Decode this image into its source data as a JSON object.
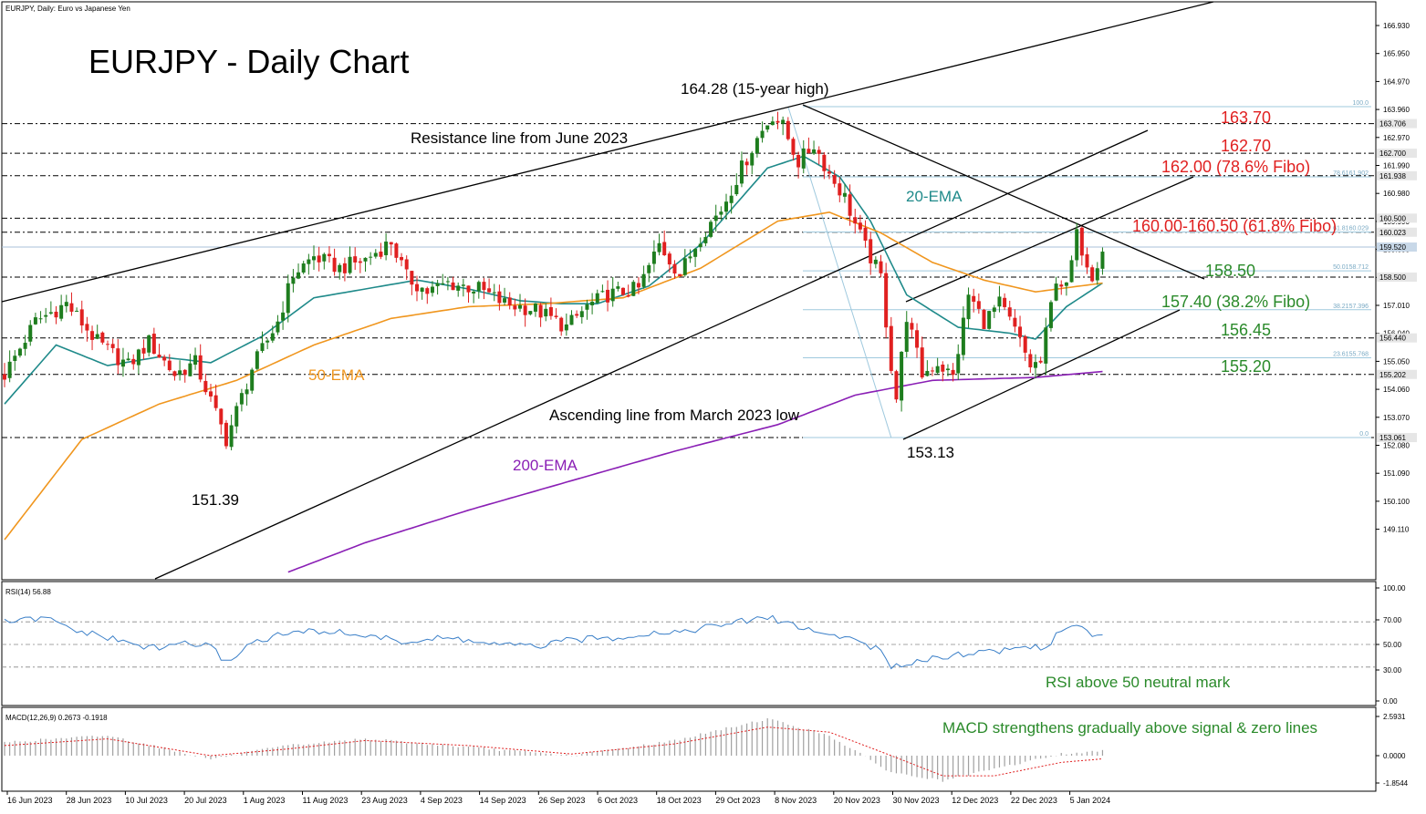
{
  "header": {
    "symbol_info": "EURJPY, Daily:  Euro vs Japanese Yen",
    "title": "EURJPY - Daily Chart"
  },
  "colors": {
    "bull": "#1e7d1e",
    "bear": "#e02020",
    "ema20": "#1f8a8a",
    "ema50": "#f0961e",
    "ema200": "#8a1fb5",
    "level_red": "#e02020",
    "level_green": "#2a8a2a",
    "fibo": "#9fc9de",
    "indicator": "#3a7fc8",
    "macd_signal": "#e02020",
    "macd_hist": "#a0a0a0"
  },
  "annotations": {
    "high": "164.28 (15-year high)",
    "resistance_line": "Resistance line from June 2023",
    "ascending_line": "Ascending line from March 2023 low",
    "ema20": "20-EMA",
    "ema50": "50-EMA",
    "ema200": "200-EMA",
    "low1": "151.39",
    "low2": "153.13",
    "lvl_163_70": "163.70",
    "lvl_162_70": "162.70",
    "lvl_162_00": "162.00 (78.6% Fibo)",
    "lvl_160": "160.00-160.50 (61.8% Fibo)",
    "lvl_158_50": "158.50",
    "lvl_157_40": "157.40 (38.2% Fibo)",
    "lvl_156_45": "156.45",
    "lvl_155_20": "155.20",
    "rsi_note": "RSI above 50 neutral mark",
    "macd_note": "MACD strengthens gradually above signal & zero lines"
  },
  "fibo_labels": {
    "f100": "100.0",
    "f786": "78.6161.902",
    "f618": "61.8160.029",
    "f500": "50.0158.712",
    "f382": "38.2157.396",
    "f236": "23.6155.768",
    "f0": "0.0"
  },
  "price_axis": {
    "ticks": [
      "166.930",
      "165.950",
      "164.970",
      "163.960",
      "162.970",
      "161.990",
      "160.980",
      "159.990",
      "159.000",
      "158.020",
      "157.010",
      "156.040",
      "155.050",
      "154.060",
      "153.070",
      "152.080",
      "151.090",
      "150.100",
      "149.110"
    ],
    "markers": [
      {
        "label": "163.706",
        "value": 163.706,
        "bg": "#e6e6e6",
        "fg": "#000000"
      },
      {
        "label": "162.700",
        "value": 162.7,
        "bg": "#e6e6e6",
        "fg": "#000000"
      },
      {
        "label": "161.938",
        "value": 161.938,
        "bg": "#e6e6e6",
        "fg": "#000000"
      },
      {
        "label": "160.500",
        "value": 160.5,
        "bg": "#e6e6e6",
        "fg": "#000000"
      },
      {
        "label": "160.023",
        "value": 160.023,
        "bg": "#e6e6e6",
        "fg": "#000000"
      },
      {
        "label": "159.520",
        "value": 159.52,
        "bg": "#c8d8e8",
        "fg": "#000000"
      },
      {
        "label": "158.500",
        "value": 158.5,
        "bg": "#e6e6e6",
        "fg": "#000000"
      },
      {
        "label": "156.440",
        "value": 156.44,
        "bg": "#e6e6e6",
        "fg": "#000000"
      },
      {
        "label": "155.202",
        "value": 155.202,
        "bg": "#e6e6e6",
        "fg": "#000000"
      },
      {
        "label": "153.061",
        "value": 153.061,
        "bg": "#e6e6e6",
        "fg": "#000000"
      }
    ]
  },
  "rsi": {
    "label": "RSI(14) 56.88",
    "ticks": [
      "100.00",
      "70.00",
      "50.00",
      "30.00",
      "0.00"
    ]
  },
  "macd": {
    "label": "MACD(12,26,9) 0.2673 -0.1918",
    "ticks": [
      "2.5931",
      "0.0000",
      "-1.8544"
    ]
  },
  "date_axis": [
    "16 Jun 2023",
    "28 Jun 2023",
    "10 Jul 2023",
    "20 Jul 2023",
    "1 Aug 2023",
    "11 Aug 2023",
    "23 Aug 2023",
    "4 Sep 2023",
    "14 Sep 2023",
    "26 Sep 2023",
    "6 Oct 2023",
    "18 Oct 2023",
    "29 Oct 2023",
    "8 Nov 2023",
    "20 Nov 2023",
    "30 Nov 2023",
    "12 Dec 2023",
    "22 Dec 2023",
    "5 Jan 2024"
  ],
  "chart_data": {
    "type": "candlestick",
    "title": "EURJPY - Daily Chart",
    "x_range": [
      "16 Jun 2023",
      "10 Jan 2024"
    ],
    "ylim": [
      148.5,
      167.3
    ],
    "key_levels": [
      164.28,
      163.7,
      162.7,
      162.0,
      160.5,
      160.0,
      158.5,
      157.4,
      156.45,
      155.2,
      153.13,
      151.39
    ],
    "fibonacci": {
      "from": 153.061,
      "to": 164.28,
      "levels": {
        "0.0": 153.061,
        "23.6": 155.768,
        "38.2": 157.396,
        "50.0": 158.712,
        "61.8": 160.029,
        "78.6": 161.902,
        "100.0": 164.28
      }
    },
    "close_path": [
      [
        0,
        155.2
      ],
      [
        6,
        157.0
      ],
      [
        12,
        157.6
      ],
      [
        18,
        156.3
      ],
      [
        24,
        155.5
      ],
      [
        28,
        156.3
      ],
      [
        33,
        155.2
      ],
      [
        37,
        155.6
      ],
      [
        43,
        153.0
      ],
      [
        48,
        155.4
      ],
      [
        53,
        157.0
      ],
      [
        56,
        158.6
      ],
      [
        60,
        159.2
      ],
      [
        65,
        158.8
      ],
      [
        70,
        159.1
      ],
      [
        75,
        159.7
      ],
      [
        78,
        158.5
      ],
      [
        82,
        158.0
      ],
      [
        86,
        158.3
      ],
      [
        92,
        158.1
      ],
      [
        97,
        157.6
      ],
      [
        103,
        157.4
      ],
      [
        109,
        156.8
      ],
      [
        113,
        157.5
      ],
      [
        117,
        157.9
      ],
      [
        123,
        158.1
      ],
      [
        127,
        159.6
      ],
      [
        131,
        158.6
      ],
      [
        135,
        159.9
      ],
      [
        139,
        160.8
      ],
      [
        143,
        162.2
      ],
      [
        146,
        163.2
      ],
      [
        149,
        164.0
      ],
      [
        151,
        163.6
      ],
      [
        154,
        162.4
      ],
      [
        157,
        163.0
      ],
      [
        160,
        162.0
      ],
      [
        163,
        161.2
      ],
      [
        165,
        160.3
      ],
      [
        167,
        159.5
      ],
      [
        170,
        158.5
      ],
      [
        172,
        155.5
      ],
      [
        173,
        154.4
      ],
      [
        175,
        157.2
      ],
      [
        178,
        155.2
      ],
      [
        181,
        155.6
      ],
      [
        184,
        155.1
      ],
      [
        187,
        157.9
      ],
      [
        190,
        157.0
      ],
      [
        193,
        157.6
      ],
      [
        196,
        156.7
      ],
      [
        199,
        155.5
      ],
      [
        201,
        155.6
      ],
      [
        204,
        158.5
      ],
      [
        206,
        158.1
      ],
      [
        208,
        159.9
      ],
      [
        211,
        158.6
      ],
      [
        213,
        159.5
      ]
    ],
    "series": [
      {
        "name": "20-EMA",
        "points": [
          [
            0,
            154.2
          ],
          [
            10,
            156.2
          ],
          [
            20,
            155.5
          ],
          [
            30,
            155.8
          ],
          [
            40,
            155.6
          ],
          [
            50,
            156.5
          ],
          [
            60,
            157.8
          ],
          [
            70,
            158.1
          ],
          [
            80,
            158.4
          ],
          [
            90,
            158.1
          ],
          [
            100,
            157.7
          ],
          [
            108,
            157.6
          ],
          [
            115,
            157.6
          ],
          [
            125,
            158.2
          ],
          [
            135,
            159.6
          ],
          [
            142,
            161.0
          ],
          [
            148,
            162.2
          ],
          [
            155,
            162.6
          ],
          [
            162,
            161.9
          ],
          [
            168,
            160.4
          ],
          [
            175,
            157.9
          ],
          [
            185,
            156.8
          ],
          [
            195,
            156.6
          ],
          [
            200,
            156.4
          ],
          [
            206,
            157.5
          ],
          [
            213,
            158.3
          ]
        ]
      },
      {
        "name": "50-EMA",
        "points": [
          [
            0,
            149.6
          ],
          [
            15,
            153.0
          ],
          [
            30,
            154.2
          ],
          [
            45,
            155.0
          ],
          [
            60,
            156.2
          ],
          [
            75,
            157.1
          ],
          [
            90,
            157.5
          ],
          [
            105,
            157.6
          ],
          [
            120,
            157.8
          ],
          [
            135,
            158.8
          ],
          [
            150,
            160.4
          ],
          [
            160,
            160.7
          ],
          [
            170,
            160.0
          ],
          [
            180,
            159.0
          ],
          [
            190,
            158.4
          ],
          [
            200,
            158.0
          ],
          [
            213,
            158.3
          ]
        ]
      },
      {
        "name": "200-EMA",
        "points": [
          [
            55,
            148.5
          ],
          [
            70,
            149.5
          ],
          [
            90,
            150.6
          ],
          [
            110,
            151.6
          ],
          [
            130,
            152.6
          ],
          [
            150,
            153.5
          ],
          [
            165,
            154.5
          ],
          [
            180,
            155.0
          ],
          [
            200,
            155.1
          ],
          [
            213,
            155.3
          ]
        ]
      }
    ],
    "rsi": {
      "name": "RSI(14)",
      "last": 56.88,
      "ylim": [
        0,
        100
      ],
      "points": [
        [
          0,
          70
        ],
        [
          8,
          73
        ],
        [
          14,
          62
        ],
        [
          20,
          56
        ],
        [
          25,
          50
        ],
        [
          30,
          46
        ],
        [
          34,
          52
        ],
        [
          40,
          48
        ],
        [
          43,
          34
        ],
        [
          48,
          52
        ],
        [
          55,
          60
        ],
        [
          62,
          62
        ],
        [
          70,
          58
        ],
        [
          78,
          52
        ],
        [
          86,
          56
        ],
        [
          95,
          50
        ],
        [
          103,
          48
        ],
        [
          110,
          54
        ],
        [
          118,
          56
        ],
        [
          125,
          60
        ],
        [
          132,
          62
        ],
        [
          140,
          68
        ],
        [
          148,
          74
        ],
        [
          152,
          69
        ],
        [
          158,
          60
        ],
        [
          165,
          55
        ],
        [
          170,
          44
        ],
        [
          172,
          28
        ],
        [
          175,
          34
        ],
        [
          180,
          38
        ],
        [
          186,
          42
        ],
        [
          192,
          44
        ],
        [
          198,
          48
        ],
        [
          202,
          48
        ],
        [
          205,
          62
        ],
        [
          208,
          68
        ],
        [
          211,
          58
        ],
        [
          213,
          57
        ]
      ]
    },
    "macd": {
      "name": "MACD(12,26,9)",
      "macd_value": 0.2673,
      "signal_value": -0.1918,
      "ylim": [
        -1.8544,
        2.5931
      ],
      "signal": [
        [
          0,
          0.6
        ],
        [
          20,
          1.0
        ],
        [
          40,
          0.0
        ],
        [
          55,
          0.4
        ],
        [
          70,
          0.9
        ],
        [
          90,
          0.6
        ],
        [
          110,
          0.1
        ],
        [
          130,
          0.7
        ],
        [
          148,
          1.7
        ],
        [
          160,
          1.4
        ],
        [
          172,
          0.0
        ],
        [
          182,
          -1.2
        ],
        [
          192,
          -1.2
        ],
        [
          205,
          -0.4
        ],
        [
          213,
          -0.19
        ]
      ],
      "histogram": [
        [
          0,
          0.8
        ],
        [
          20,
          1.2
        ],
        [
          40,
          -0.2
        ],
        [
          55,
          0.6
        ],
        [
          70,
          1.0
        ],
        [
          90,
          0.5
        ],
        [
          110,
          0.0
        ],
        [
          130,
          0.9
        ],
        [
          148,
          2.2
        ],
        [
          160,
          1.2
        ],
        [
          172,
          -1.0
        ],
        [
          182,
          -1.5
        ],
        [
          192,
          -0.8
        ],
        [
          205,
          0.1
        ],
        [
          213,
          0.27
        ]
      ]
    }
  }
}
